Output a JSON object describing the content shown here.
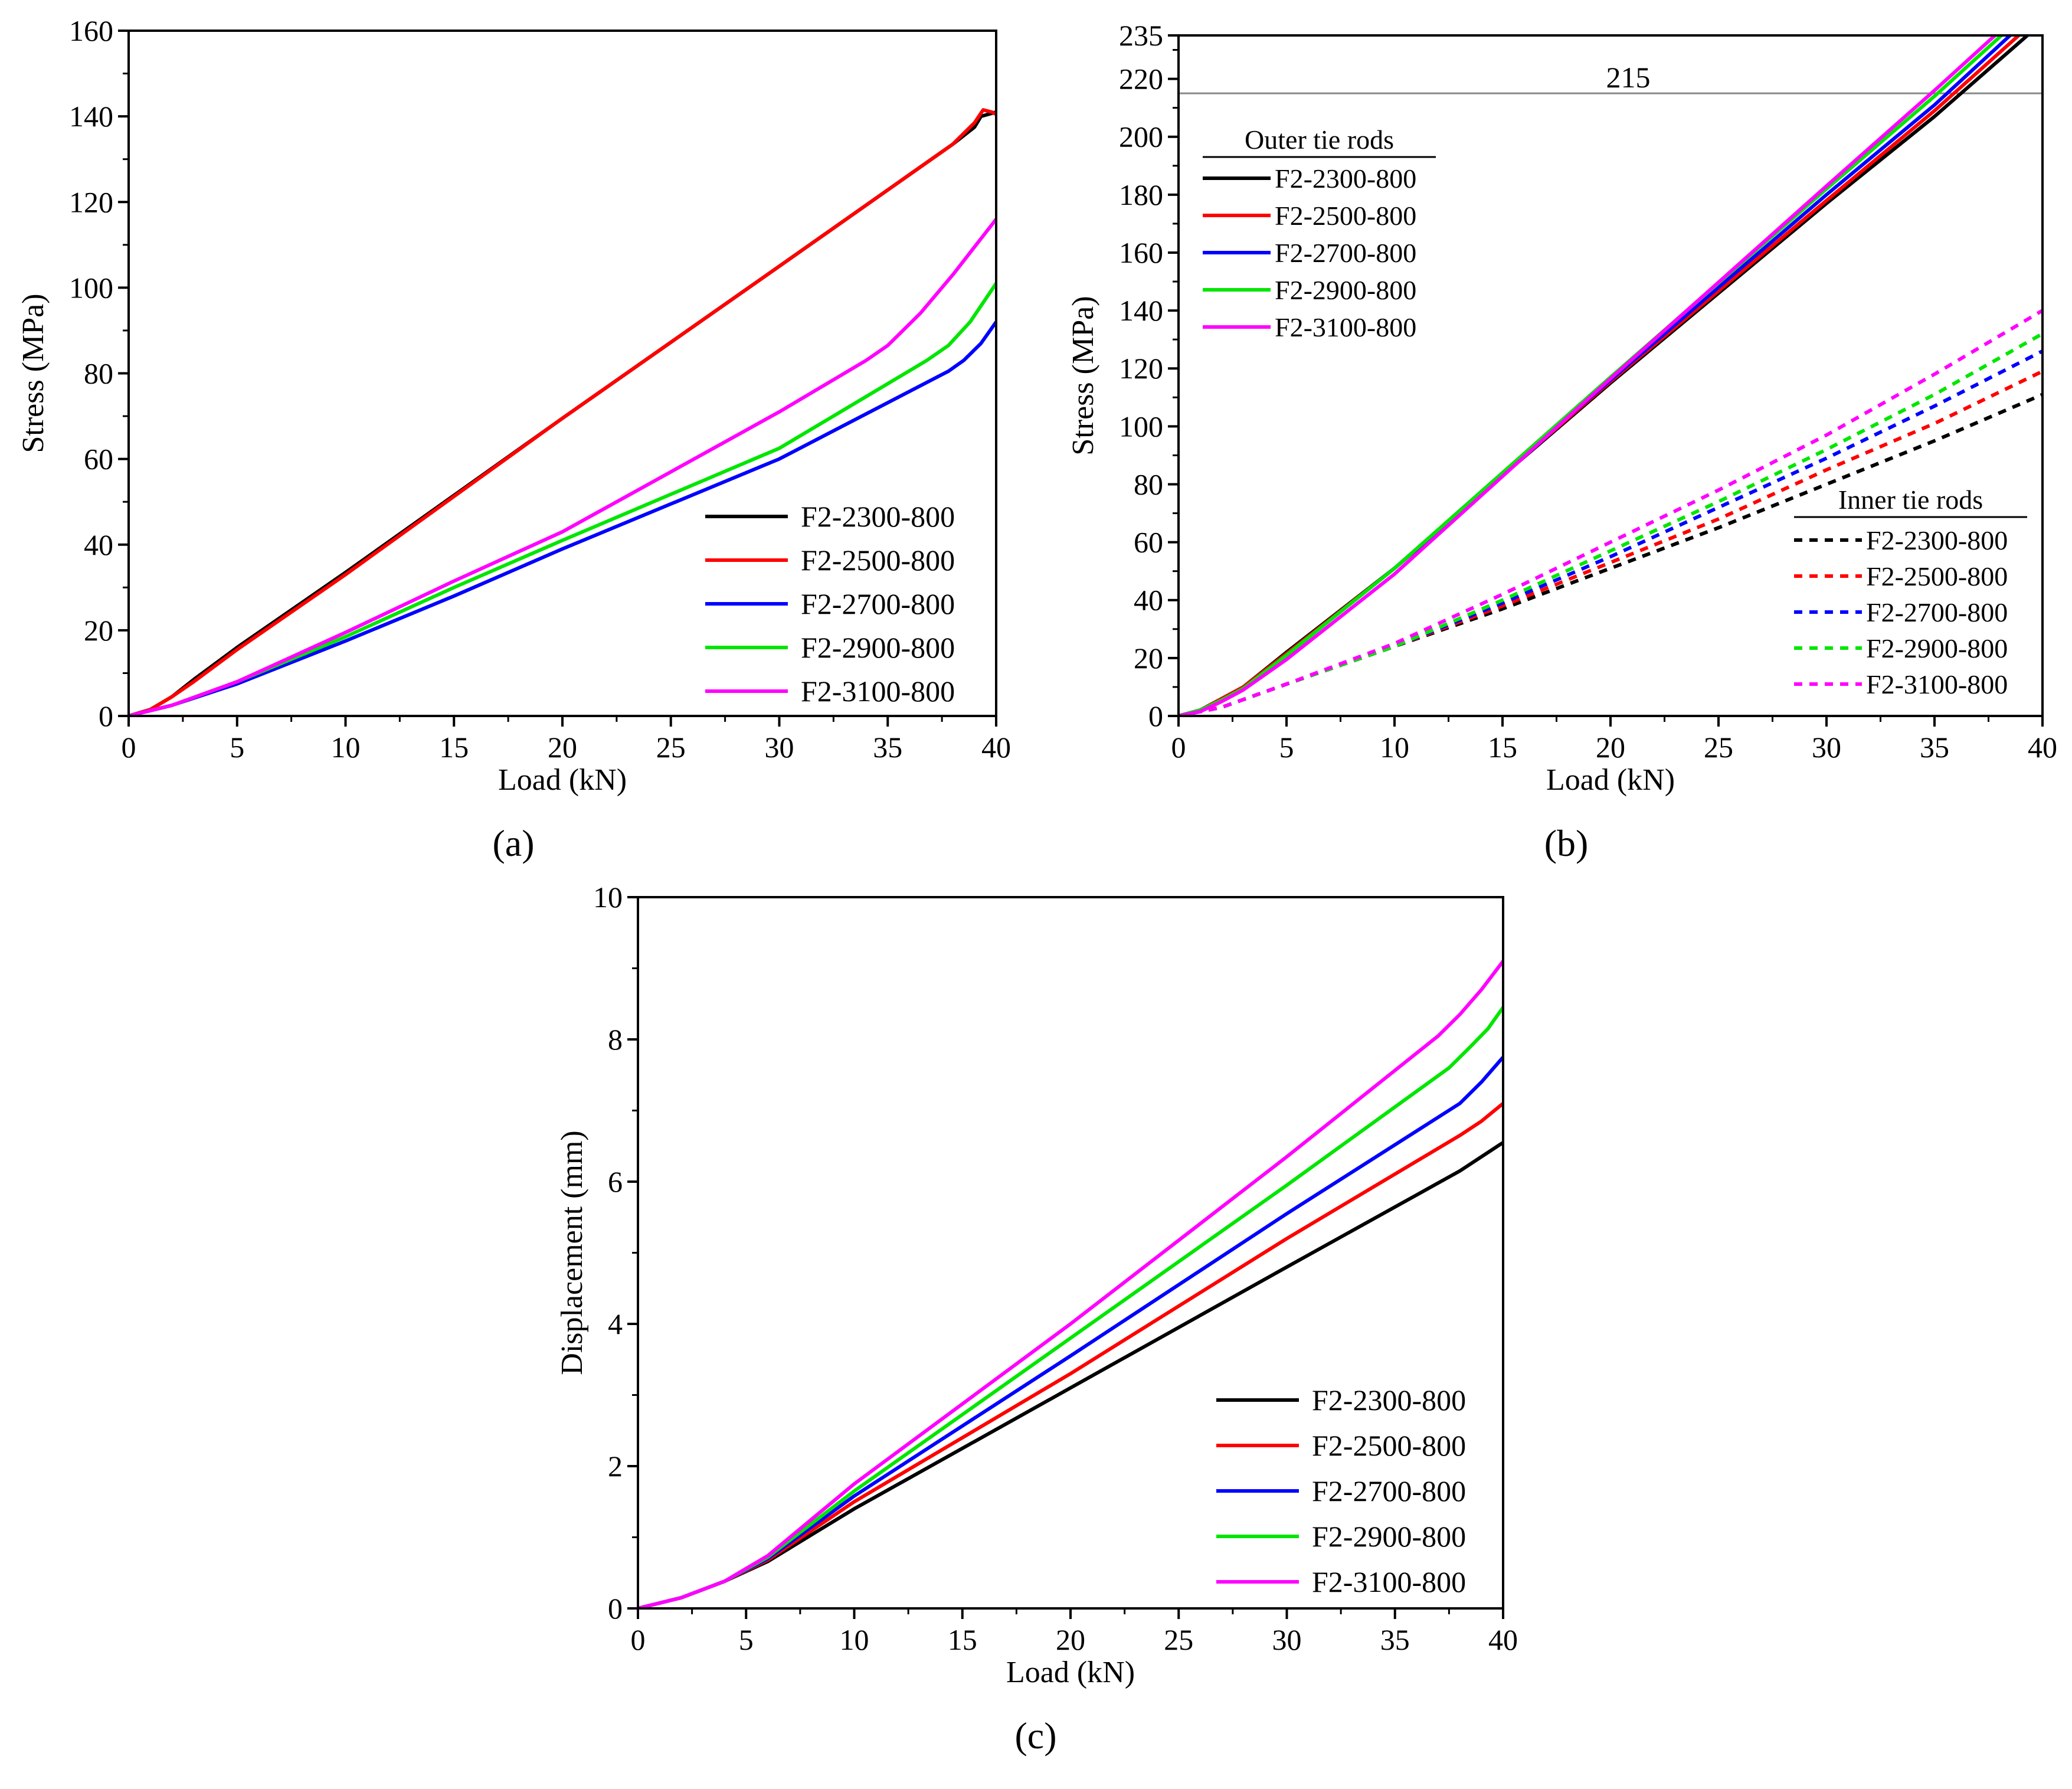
{
  "figure": {
    "panel_labels": [
      "(a)",
      "(b)",
      "(c)"
    ],
    "colors": {
      "F2-2300-800": "#000000",
      "F2-2500-800": "#ff0000",
      "F2-2700-800": "#0000ff",
      "F2-2900-800": "#00e600",
      "F2-3100-800": "#ff00ff"
    }
  },
  "chart_data": [
    {
      "id": "a",
      "type": "line",
      "panel_label": "(a)",
      "xlabel": "Load (kN)",
      "ylabel": "Stress (MPa)",
      "xlim": [
        0,
        40
      ],
      "ylim": [
        0,
        160
      ],
      "xticks": [
        0,
        5,
        10,
        15,
        20,
        25,
        30,
        35,
        40
      ],
      "yticks": [
        0,
        20,
        40,
        60,
        80,
        100,
        120,
        140,
        160
      ],
      "legend_position": "bottom-right",
      "legend": [
        "F2-2300-800",
        "F2-2500-800",
        "F2-2700-800",
        "F2-2900-800",
        "F2-3100-800"
      ],
      "series": [
        {
          "name": "F2-2300-800",
          "color": "#000000",
          "dash": false,
          "x": [
            0,
            1,
            2,
            3,
            5,
            10,
            20,
            30,
            38,
            39,
            39.3,
            40
          ],
          "y": [
            0,
            1.5,
            4.5,
            8.5,
            16,
            33.5,
            69.5,
            105,
            133.5,
            137.5,
            140,
            141
          ]
        },
        {
          "name": "F2-2500-800",
          "color": "#ff0000",
          "dash": false,
          "x": [
            0,
            1,
            2,
            3,
            5,
            10,
            20,
            30,
            38,
            39,
            39.4,
            39.8,
            40
          ],
          "y": [
            0,
            1.5,
            4.5,
            8,
            15.5,
            33,
            69.5,
            105,
            133.5,
            138.5,
            141.5,
            141,
            140.5
          ]
        },
        {
          "name": "F2-2700-800",
          "color": "#0000ff",
          "dash": false,
          "x": [
            0,
            2,
            5,
            10,
            15,
            20,
            30,
            37.8,
            38.5,
            39.3,
            40
          ],
          "y": [
            0,
            2.5,
            7.5,
            17.5,
            28,
            39,
            60,
            80.5,
            83,
            87,
            92
          ]
        },
        {
          "name": "F2-2900-800",
          "color": "#00e600",
          "dash": false,
          "x": [
            0,
            2,
            5,
            10,
            15,
            20,
            30,
            36.8,
            37.8,
            38.8,
            40
          ],
          "y": [
            0,
            2.5,
            8,
            18.5,
            30,
            41,
            62.5,
            83,
            86.5,
            92,
            101
          ]
        },
        {
          "name": "F2-3100-800",
          "color": "#ff00ff",
          "dash": false,
          "x": [
            0,
            2,
            5,
            10,
            15,
            20,
            30,
            34,
            35,
            36.5,
            38,
            39,
            40
          ],
          "y": [
            0,
            2.5,
            8,
            19.5,
            31.5,
            43,
            71,
            83,
            86.5,
            94,
            103,
            109.5,
            116
          ]
        }
      ]
    },
    {
      "id": "b",
      "type": "line",
      "panel_label": "(b)",
      "xlabel": "Load (kN)",
      "ylabel": "Stress (MPa)",
      "xlim": [
        0,
        40
      ],
      "ylim": [
        0,
        235
      ],
      "xticks": [
        0,
        5,
        10,
        15,
        20,
        25,
        30,
        35,
        40
      ],
      "yticks": [
        0,
        20,
        40,
        60,
        80,
        100,
        120,
        140,
        160,
        180,
        200,
        220,
        235
      ],
      "reference_line": {
        "y": 215,
        "label": "215"
      },
      "legend_groups": [
        {
          "title": "Outer tie rods",
          "position": "top-left",
          "dash": false,
          "entries": [
            "F2-2300-800",
            "F2-2500-800",
            "F2-2700-800",
            "F2-2900-800",
            "F2-3100-800"
          ]
        },
        {
          "title": "Inner tie rods",
          "position": "bottom-right",
          "dash": true,
          "entries": [
            "F2-2300-800",
            "F2-2500-800",
            "F2-2700-800",
            "F2-2900-800",
            "F2-3100-800"
          ]
        }
      ],
      "series": [
        {
          "name": "F2-2300-800",
          "group": "Outer tie rods",
          "color": "#000000",
          "dash": false,
          "x": [
            0,
            1,
            2,
            3,
            5,
            10,
            20,
            30,
            35,
            39.3
          ],
          "y": [
            0,
            2,
            6,
            10,
            22,
            51,
            115,
            177,
            207,
            235
          ]
        },
        {
          "name": "F2-2500-800",
          "group": "Outer tie rods",
          "color": "#ff0000",
          "dash": false,
          "x": [
            0,
            1,
            2,
            3,
            5,
            10,
            20,
            30,
            35,
            38.9
          ],
          "y": [
            0,
            2,
            6,
            10,
            21.5,
            51,
            115.5,
            178,
            209,
            235
          ]
        },
        {
          "name": "F2-2700-800",
          "group": "Outer tie rods",
          "color": "#0000ff",
          "dash": false,
          "x": [
            0,
            1,
            2,
            3,
            5,
            10,
            20,
            30,
            35,
            38.5
          ],
          "y": [
            0,
            2,
            5.5,
            9.5,
            21,
            51,
            116,
            180,
            211,
            235
          ]
        },
        {
          "name": "F2-2900-800",
          "group": "Outer tie rods",
          "color": "#00e600",
          "dash": false,
          "x": [
            0,
            1,
            2,
            3,
            5,
            10,
            20,
            30,
            35,
            38.1
          ],
          "y": [
            0,
            2,
            5.5,
            9.5,
            21,
            51,
            117,
            182,
            214,
            235
          ]
        },
        {
          "name": "F2-3100-800",
          "group": "Outer tie rods",
          "color": "#ff00ff",
          "dash": false,
          "x": [
            0,
            1,
            2,
            3,
            5,
            10,
            20,
            30,
            35,
            37.8
          ],
          "y": [
            0,
            1.5,
            5,
            9,
            19.5,
            49,
            116.5,
            183,
            216,
            235
          ]
        },
        {
          "name": "F2-2300-800",
          "group": "Inner tie rods",
          "color": "#000000",
          "dash": true,
          "x": [
            0,
            2,
            5,
            10,
            15,
            20,
            25,
            30,
            35,
            40
          ],
          "y": [
            0,
            3,
            11,
            24,
            37,
            51,
            65,
            80,
            95,
            111
          ]
        },
        {
          "name": "F2-2500-800",
          "group": "Inner tie rods",
          "color": "#ff0000",
          "dash": true,
          "x": [
            0,
            2,
            5,
            10,
            15,
            20,
            25,
            30,
            35,
            40
          ],
          "y": [
            0,
            3,
            11,
            24,
            38,
            53,
            68,
            85,
            101,
            119
          ]
        },
        {
          "name": "F2-2700-800",
          "group": "Inner tie rods",
          "color": "#0000ff",
          "dash": true,
          "x": [
            0,
            2,
            5,
            10,
            15,
            20,
            25,
            30,
            35,
            40
          ],
          "y": [
            0,
            3,
            11,
            24,
            39,
            55,
            72,
            89,
            107,
            126
          ]
        },
        {
          "name": "F2-2900-800",
          "group": "Inner tie rods",
          "color": "#00e600",
          "dash": true,
          "x": [
            0,
            2,
            5,
            10,
            15,
            20,
            25,
            30,
            35,
            40
          ],
          "y": [
            0,
            3,
            11,
            24,
            40,
            57,
            74,
            92,
            111,
            132
          ]
        },
        {
          "name": "F2-3100-800",
          "group": "Inner tie rods",
          "color": "#ff00ff",
          "dash": true,
          "x": [
            0,
            2,
            5,
            10,
            15,
            20,
            25,
            30,
            35,
            40
          ],
          "y": [
            0,
            3,
            11,
            25,
            42,
            60,
            78,
            97,
            118,
            140
          ]
        }
      ]
    },
    {
      "id": "c",
      "type": "line",
      "panel_label": "(c)",
      "xlabel": "Load (kN)",
      "ylabel": "Displacement (mm)",
      "xlim": [
        0,
        40
      ],
      "ylim": [
        0,
        10
      ],
      "xticks": [
        0,
        5,
        10,
        15,
        20,
        25,
        30,
        35,
        40
      ],
      "yticks": [
        0,
        2,
        4,
        6,
        8,
        10
      ],
      "legend_position": "bottom-right",
      "legend": [
        "F2-2300-800",
        "F2-2500-800",
        "F2-2700-800",
        "F2-2900-800",
        "F2-3100-800"
      ],
      "series": [
        {
          "name": "F2-2300-800",
          "color": "#000000",
          "dash": false,
          "x": [
            0,
            2,
            4,
            6,
            10,
            20,
            30,
            38,
            40
          ],
          "y": [
            0,
            0.15,
            0.38,
            0.66,
            1.4,
            3.1,
            4.8,
            6.15,
            6.55
          ]
        },
        {
          "name": "F2-2500-800",
          "color": "#ff0000",
          "dash": false,
          "x": [
            0,
            2,
            4,
            6,
            10,
            20,
            30,
            38,
            39,
            40
          ],
          "y": [
            0,
            0.15,
            0.38,
            0.68,
            1.5,
            3.3,
            5.2,
            6.65,
            6.85,
            7.1
          ]
        },
        {
          "name": "F2-2700-800",
          "color": "#0000ff",
          "dash": false,
          "x": [
            0,
            2,
            4,
            6,
            10,
            20,
            30,
            38,
            39,
            40
          ],
          "y": [
            0,
            0.15,
            0.38,
            0.7,
            1.58,
            3.55,
            5.55,
            7.1,
            7.4,
            7.75
          ]
        },
        {
          "name": "F2-2900-800",
          "color": "#00e600",
          "dash": false,
          "x": [
            0,
            2,
            4,
            6,
            10,
            20,
            30,
            37.5,
            38.5,
            39.3,
            40
          ],
          "y": [
            0,
            0.15,
            0.38,
            0.72,
            1.65,
            3.8,
            5.95,
            7.6,
            7.9,
            8.15,
            8.45
          ]
        },
        {
          "name": "F2-3100-800",
          "color": "#ff00ff",
          "dash": false,
          "x": [
            0,
            2,
            4,
            6,
            10,
            20,
            30,
            37,
            38,
            39,
            40
          ],
          "y": [
            0,
            0.15,
            0.38,
            0.74,
            1.75,
            4.0,
            6.35,
            8.05,
            8.35,
            8.7,
            9.1
          ]
        }
      ]
    }
  ]
}
